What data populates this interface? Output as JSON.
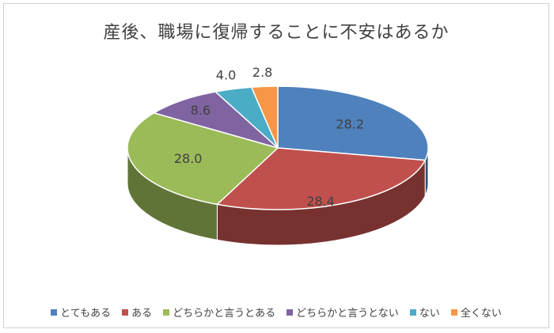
{
  "chart_data": {
    "type": "pie",
    "title": "産後、職場に復帰することに不安はあるか",
    "categories": [
      "とてもある",
      "ある",
      "どちらかと言うとある",
      "どちらかと言うとない",
      "ない",
      "全くない"
    ],
    "values": [
      28.2,
      28.4,
      28.0,
      8.6,
      4.0,
      2.8
    ],
    "data_labels": [
      "28.2",
      "28.4",
      "28.0",
      "8.6",
      "4.0",
      "2.8"
    ],
    "colors": [
      "#4f81bd",
      "#c0504d",
      "#9bbb59",
      "#8064a2",
      "#4bacc6",
      "#f79646"
    ],
    "legend_position": "bottom",
    "style": "3d"
  }
}
